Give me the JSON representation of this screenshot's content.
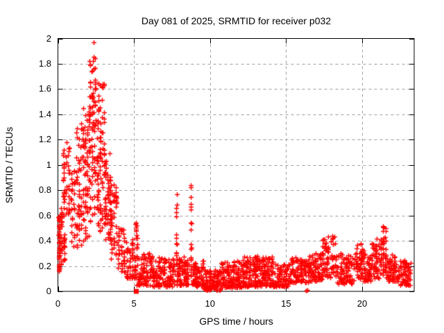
{
  "chart_data": {
    "type": "scatter",
    "title": "Day 081 of 2025, SRMTID for receiver p032",
    "xlabel": "GPS time / hours",
    "ylabel": "SRMTID / TECUs",
    "xlim": [
      0,
      23.42
    ],
    "ylim": [
      0,
      2
    ],
    "xticks": [
      0,
      5,
      10,
      15,
      20
    ],
    "xtick_labels": [
      "0",
      "5",
      "10",
      "15",
      "20"
    ],
    "yticks": [
      0,
      0.2,
      0.4,
      0.6,
      0.8,
      1,
      1.2,
      1.4,
      1.6,
      1.8,
      2
    ],
    "ytick_labels": [
      "0",
      "0.2",
      "0.4",
      "0.6",
      "0.8",
      "1",
      "1.2",
      "1.4",
      "1.6",
      "1.8",
      "2"
    ],
    "grid": true,
    "grid_style": "dashed",
    "grid_color": "#a0a0a0",
    "marker": "plus",
    "marker_color": "#ff0000",
    "axis_color": "#000000",
    "legend": "none",
    "seed": 20250081,
    "point_cloud_segments": [
      {
        "t": [
          0.0,
          0.15
        ],
        "y": [
          0.15,
          0.62
        ],
        "n": 45,
        "bias": 1.1,
        "columns": 1
      },
      {
        "t": [
          0.15,
          0.5
        ],
        "y": [
          0.2,
          0.68
        ],
        "n": 35,
        "bias": 1.1,
        "columns": 2
      },
      {
        "t": [
          0.3,
          0.8
        ],
        "y": [
          0.6,
          1.18
        ],
        "n": 45,
        "bias": 1.0,
        "columns": 3
      },
      {
        "t": [
          0.8,
          1.15
        ],
        "y": [
          0.35,
          1.0
        ],
        "n": 30,
        "bias": 1.1,
        "columns": 2
      },
      {
        "t": [
          1.15,
          1.6
        ],
        "y": [
          0.35,
          1.35
        ],
        "n": 50,
        "bias": 1.0,
        "columns": 3
      },
      {
        "t": [
          1.6,
          2.1
        ],
        "y": [
          0.4,
          1.45
        ],
        "n": 75,
        "bias": 0.9,
        "columns": 4
      },
      {
        "t": [
          2.05,
          2.3
        ],
        "y": [
          0.55,
          1.85
        ],
        "n": 40,
        "bias": 1.0,
        "columns": 2
      },
      {
        "t": [
          2.28,
          2.5
        ],
        "y": [
          1.3,
          2.0
        ],
        "n": 22,
        "bias": 0.8,
        "columns": 2
      },
      {
        "t": [
          2.3,
          2.7
        ],
        "y": [
          0.6,
          1.35
        ],
        "n": 35,
        "bias": 1.0,
        "columns": 2
      },
      {
        "t": [
          2.6,
          3.1
        ],
        "y": [
          0.45,
          1.7
        ],
        "n": 75,
        "bias": 1.1,
        "columns": 4
      },
      {
        "t": [
          3.05,
          3.5
        ],
        "y": [
          0.4,
          1.1
        ],
        "n": 60,
        "bias": 1.1,
        "columns": 3
      },
      {
        "t": [
          3.45,
          3.9
        ],
        "y": [
          0.25,
          0.85
        ],
        "n": 45,
        "bias": 1.2,
        "columns": 3
      },
      {
        "t": [
          3.9,
          4.45
        ],
        "y": [
          0.15,
          0.5
        ],
        "n": 40,
        "bias": 1.2,
        "columns": 3
      },
      {
        "t": [
          4.45,
          5.15
        ],
        "y": [
          0.1,
          0.42
        ],
        "n": 55,
        "bias": 1.3,
        "columns": 4
      },
      {
        "t": [
          5.0,
          5.3
        ],
        "y": [
          0.3,
          0.56
        ],
        "n": 12,
        "bias": 1.0,
        "columns": 1
      },
      {
        "t": [
          5.15,
          6.2
        ],
        "y": [
          0.05,
          0.3
        ],
        "n": 90,
        "bias": 1.5,
        "columns": 0
      },
      {
        "t": [
          6.2,
          7.7
        ],
        "y": [
          0.04,
          0.27
        ],
        "n": 130,
        "bias": 1.5,
        "columns": 0
      },
      {
        "t": [
          7.74,
          7.84
        ],
        "y": [
          0.2,
          0.78
        ],
        "n": 16,
        "bias": 1.1,
        "columns": 1
      },
      {
        "t": [
          7.8,
          8.6
        ],
        "y": [
          0.05,
          0.28
        ],
        "n": 70,
        "bias": 1.5,
        "columns": 0
      },
      {
        "t": [
          8.68,
          8.8
        ],
        "y": [
          0.12,
          0.85
        ],
        "n": 20,
        "bias": 1.1,
        "columns": 1
      },
      {
        "t": [
          8.8,
          9.6
        ],
        "y": [
          0.04,
          0.24
        ],
        "n": 70,
        "bias": 1.5,
        "columns": 0
      },
      {
        "t": [
          9.6,
          10.7
        ],
        "y": [
          0.01,
          0.17
        ],
        "n": 110,
        "bias": 1.4,
        "columns": 0
      },
      {
        "t": [
          10.7,
          12.1
        ],
        "y": [
          0.03,
          0.24
        ],
        "n": 140,
        "bias": 1.5,
        "columns": 0
      },
      {
        "t": [
          12.1,
          14.1
        ],
        "y": [
          0.04,
          0.28
        ],
        "n": 200,
        "bias": 1.5,
        "columns": 0
      },
      {
        "t": [
          14.1,
          15.2
        ],
        "y": [
          0.04,
          0.22
        ],
        "n": 95,
        "bias": 1.5,
        "columns": 0
      },
      {
        "t": [
          15.2,
          16.5
        ],
        "y": [
          0.07,
          0.28
        ],
        "n": 100,
        "bias": 1.5,
        "columns": 0
      },
      {
        "t": [
          16.5,
          17.4
        ],
        "y": [
          0.08,
          0.31
        ],
        "n": 80,
        "bias": 1.5,
        "columns": 0
      },
      {
        "t": [
          17.4,
          18.3
        ],
        "y": [
          0.1,
          0.46
        ],
        "n": 75,
        "bias": 1.3,
        "columns": 0
      },
      {
        "t": [
          18.3,
          19.6
        ],
        "y": [
          0.06,
          0.3
        ],
        "n": 95,
        "bias": 1.5,
        "columns": 0
      },
      {
        "t": [
          19.6,
          20.1
        ],
        "y": [
          0.1,
          0.38
        ],
        "n": 50,
        "bias": 1.3,
        "columns": 0
      },
      {
        "t": [
          20.1,
          20.65
        ],
        "y": [
          0.08,
          0.3
        ],
        "n": 45,
        "bias": 1.5,
        "columns": 0
      },
      {
        "t": [
          20.6,
          21.15
        ],
        "y": [
          0.1,
          0.42
        ],
        "n": 50,
        "bias": 1.4,
        "columns": 0
      },
      {
        "t": [
          21.15,
          21.6
        ],
        "y": [
          0.12,
          0.53
        ],
        "n": 55,
        "bias": 1.2,
        "columns": 3
      },
      {
        "t": [
          21.6,
          22.4
        ],
        "y": [
          0.08,
          0.3
        ],
        "n": 70,
        "bias": 1.5,
        "columns": 0
      },
      {
        "t": [
          22.4,
          23.2
        ],
        "y": [
          0.05,
          0.25
        ],
        "n": 65,
        "bias": 1.5,
        "columns": 0
      }
    ],
    "special_points": [
      {
        "x": 5.15,
        "y": 0.0,
        "marker": "filled-square"
      },
      {
        "x": 16.3,
        "y": 0.005,
        "marker": "plus"
      },
      {
        "x": 16.4,
        "y": 0.01,
        "marker": "plus"
      }
    ]
  }
}
